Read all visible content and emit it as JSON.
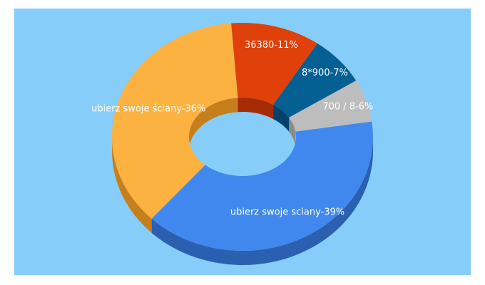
{
  "chart_data": {
    "type": "pie",
    "style": "3d-donut",
    "background": "#87cdf9",
    "slices": [
      {
        "label": "ubierz swoje sciany-39%",
        "value": 39,
        "color": "#4188ee",
        "side": "#2b5fb0"
      },
      {
        "label": "ubierz swoje ściany-36%",
        "value": 36,
        "color": "#fbb241",
        "side": "#c67f1a"
      },
      {
        "label": "36380-11%",
        "value": 11,
        "color": "#e0400a",
        "side": "#a42c05"
      },
      {
        "label": "8*900-7%",
        "value": 7,
        "color": "#045f93",
        "side": "#03416a"
      },
      {
        "label": "700 / 8-6%",
        "value": 6,
        "color": "#bdbdbd",
        "side": "#8a8a8a"
      }
    ]
  }
}
